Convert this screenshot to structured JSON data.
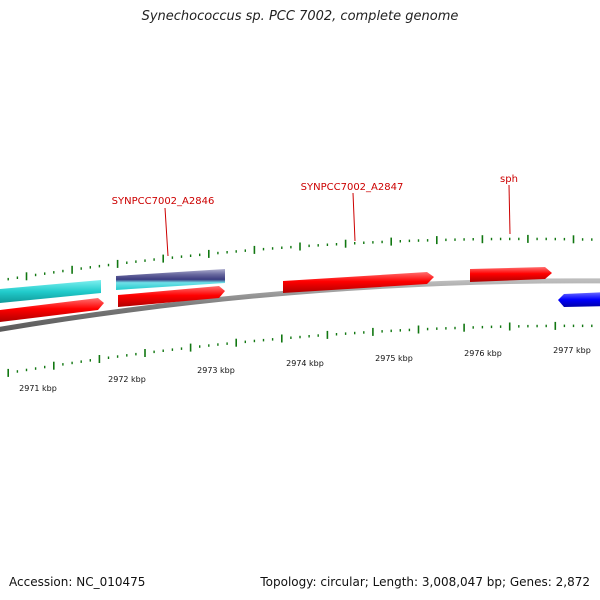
{
  "title": "Synechococcus sp. PCC 7002, complete genome",
  "accession": "Accession: NC_010475",
  "topology": "Topology: circular; Length: 3,008,047 bp; Genes: 2,872",
  "gene_labels": [
    {
      "name": "SYNPCC7002_A2846"
    },
    {
      "name": "SYNPCC7002_A2847"
    },
    {
      "name": "sph"
    }
  ],
  "ruler_labels": [
    "2971 kbp",
    "2972 kbp",
    "2973 kbp",
    "2974 kbp",
    "2975 kbp",
    "2976 kbp",
    "2977 kbp"
  ],
  "colors": {
    "backbone": "#888888",
    "forward_gene": "#ff0000",
    "reverse_gene": "#0000ff",
    "cyan_feature": "#22cccc",
    "purple_feature": "#444488",
    "tick": "#117711",
    "label_text": "#cc0000"
  }
}
